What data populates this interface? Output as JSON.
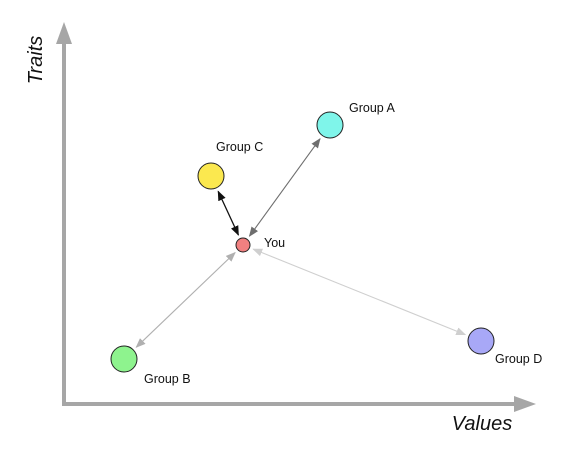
{
  "axes": {
    "x_label": "Values",
    "y_label": "Traits",
    "color": "#a6a6a6"
  },
  "nodes": {
    "you": {
      "label": "You",
      "color": "#f08080"
    },
    "group_a": {
      "label": "Group A",
      "color": "#7ff5ea"
    },
    "group_b": {
      "label": "Group B",
      "color": "#8ef38e"
    },
    "group_c": {
      "label": "Group C",
      "color": "#fbe84f"
    },
    "group_d": {
      "label": "Group D",
      "color": "#a8a8f7"
    }
  },
  "connections": [
    {
      "from": "you",
      "to": "group_a",
      "color": "#6e6e6e"
    },
    {
      "from": "you",
      "to": "group_b",
      "color": "#b0b0b0"
    },
    {
      "from": "you",
      "to": "group_c",
      "color": "#111111"
    },
    {
      "from": "you",
      "to": "group_d",
      "color": "#cfcfcf"
    }
  ]
}
